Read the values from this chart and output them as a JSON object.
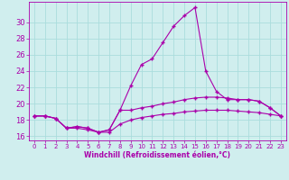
{
  "xlabel": "Windchill (Refroidissement éolien,°C)",
  "background_color": "#d0eeee",
  "grid_color": "#aadddd",
  "line_color": "#aa00aa",
  "x_hours": [
    0,
    1,
    2,
    3,
    4,
    5,
    6,
    7,
    8,
    9,
    10,
    11,
    12,
    13,
    14,
    15,
    16,
    17,
    18,
    19,
    20,
    21,
    22,
    23
  ],
  "curve_top": [
    18.5,
    18.5,
    18.2,
    17.0,
    17.2,
    17.0,
    16.5,
    16.8,
    19.2,
    22.2,
    24.8,
    25.5,
    27.5,
    29.5,
    30.8,
    31.8,
    24.0,
    21.5,
    20.5,
    20.5,
    20.5,
    20.3,
    19.5,
    18.5
  ],
  "curve_mid": [
    18.5,
    18.5,
    18.2,
    17.0,
    17.2,
    17.0,
    16.5,
    16.8,
    19.2,
    19.2,
    19.5,
    19.7,
    20.0,
    20.2,
    20.5,
    20.7,
    20.8,
    20.8,
    20.7,
    20.5,
    20.5,
    20.3,
    19.5,
    18.5
  ],
  "curve_bot": [
    18.5,
    18.5,
    18.2,
    17.0,
    17.0,
    16.8,
    16.5,
    16.5,
    17.5,
    18.0,
    18.3,
    18.5,
    18.7,
    18.8,
    19.0,
    19.1,
    19.2,
    19.2,
    19.2,
    19.1,
    19.0,
    18.9,
    18.7,
    18.5
  ],
  "ylim": [
    15.5,
    32.5
  ],
  "yticks": [
    16,
    18,
    20,
    22,
    24,
    26,
    28,
    30
  ],
  "xlim": [
    -0.5,
    23.5
  ]
}
